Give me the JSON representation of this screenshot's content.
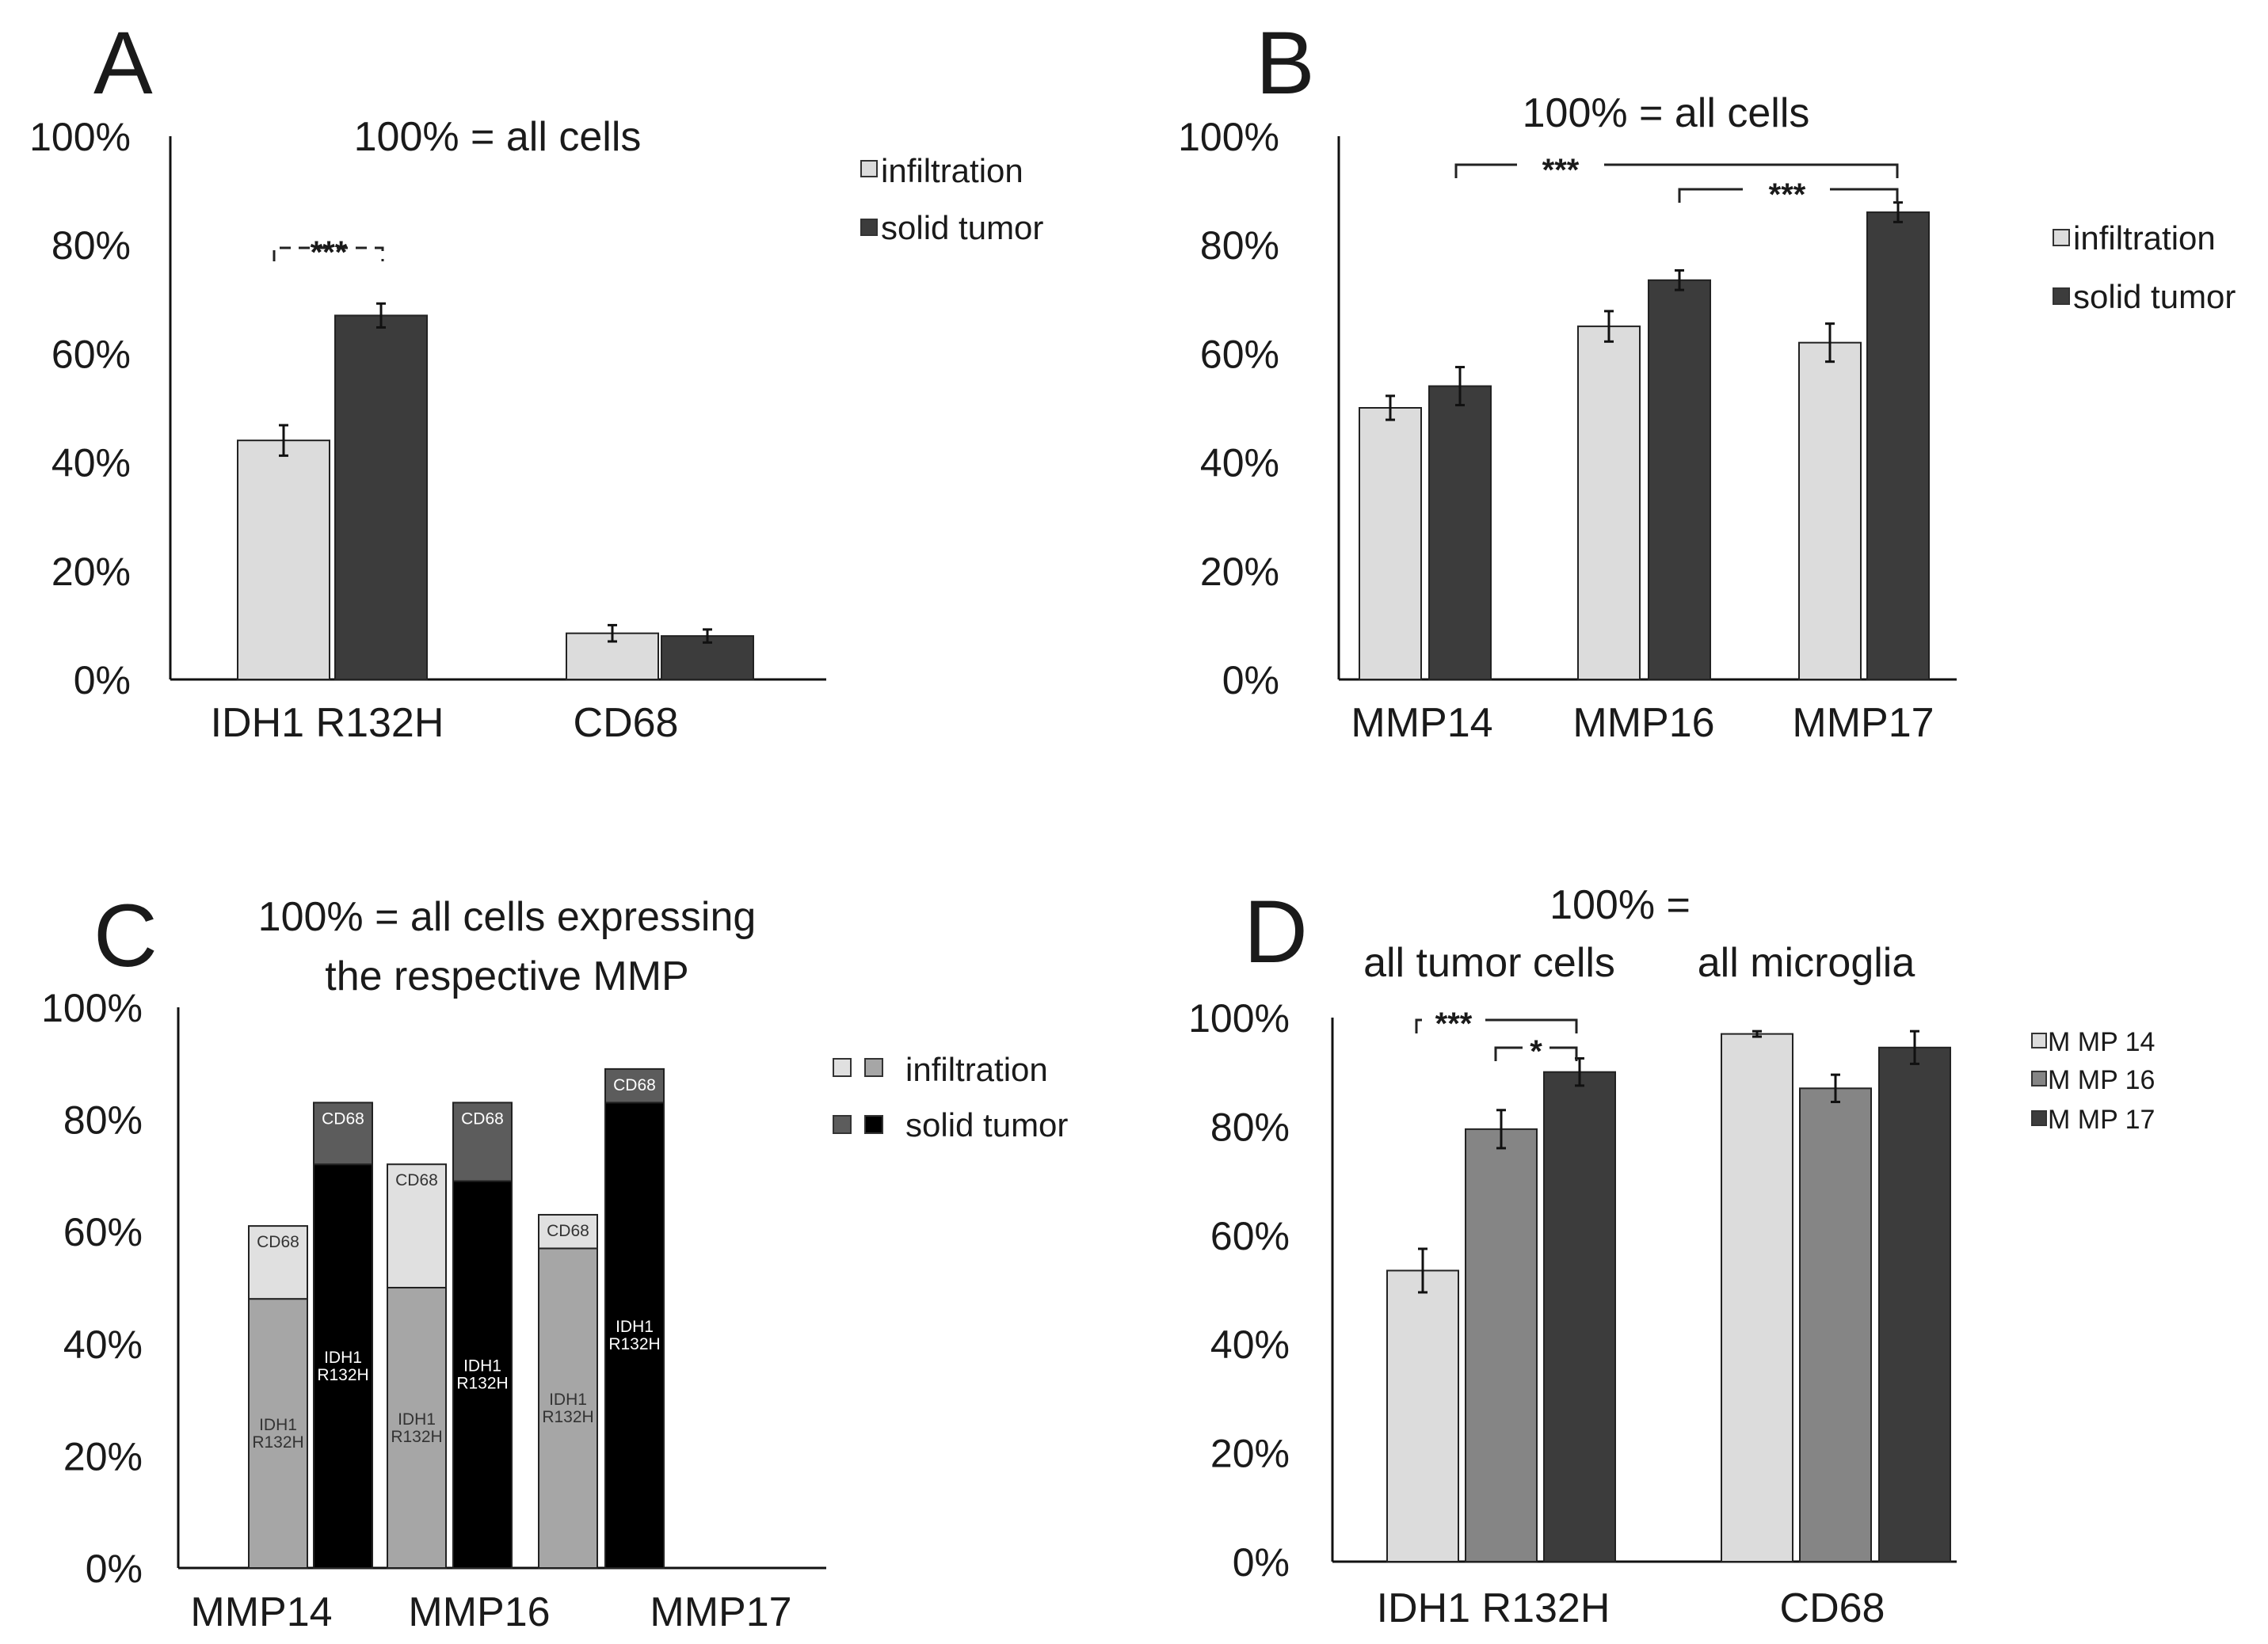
{
  "chart_data": [
    {
      "panel": "A",
      "type": "bar",
      "title": "100% = all cells",
      "categories": [
        "IDH1 R132H",
        "CD68"
      ],
      "series": [
        {
          "name": "infiltration",
          "values": [
            44,
            8.5
          ],
          "errors": [
            2.8,
            1.5
          ],
          "color": "#dcdcdc"
        },
        {
          "name": "solid tumor",
          "values": [
            67,
            8
          ],
          "errors": [
            2.2,
            1.2
          ],
          "color": "#3c3c3c"
        }
      ],
      "yticks": [
        "0%",
        "20%",
        "40%",
        "60%",
        "80%",
        "100%"
      ],
      "ylim": [
        0,
        100
      ],
      "legend_position": "top-right",
      "significance": [
        {
          "label": "***",
          "from": "IDH1 R132H infiltration",
          "to": "IDH1 R132H solid tumor"
        }
      ]
    },
    {
      "panel": "B",
      "type": "bar",
      "title": "100% = all cells",
      "categories": [
        "MMP14",
        "MMP16",
        "MMP17"
      ],
      "series": [
        {
          "name": "infiltration",
          "values": [
            50,
            65,
            62
          ],
          "errors": [
            2.2,
            2.8,
            3.5
          ],
          "color": "#dcdcdc"
        },
        {
          "name": "solid tumor",
          "values": [
            54,
            73.5,
            86
          ],
          "errors": [
            3.5,
            1.8,
            1.8
          ],
          "color": "#3c3c3c"
        }
      ],
      "yticks": [
        "0%",
        "20%",
        "40%",
        "60%",
        "80%",
        "100%"
      ],
      "ylim": [
        0,
        100
      ],
      "legend_position": "right",
      "significance": [
        {
          "label": "***",
          "from": "MMP14",
          "to": "MMP17"
        },
        {
          "label": "***",
          "from": "MMP16",
          "to": "MMP17"
        }
      ]
    },
    {
      "panel": "C",
      "type": "bar",
      "stacked": true,
      "title": "100% = all cells expressing the respective MMP",
      "title_lines": [
        "100% = all cells expressing",
        "the respective MMP"
      ],
      "categories": [
        "MMP14",
        "MMP16",
        "MMP17"
      ],
      "segment_labels": {
        "IDH1 R132H": [
          "IDH1",
          "R132H"
        ],
        "CD68": "CD68"
      },
      "stacks": [
        {
          "group": "infiltration",
          "segments": [
            {
              "name": "IDH1 R132H",
              "values": [
                48,
                50,
                57
              ],
              "color": "#a6a6a6"
            },
            {
              "name": "CD68",
              "values": [
                13,
                22,
                6
              ],
              "color": "#e0e0e0"
            }
          ]
        },
        {
          "group": "solid tumor",
          "segments": [
            {
              "name": "IDH1 R132H",
              "values": [
                72,
                69,
                83
              ],
              "color": "#000000"
            },
            {
              "name": "CD68",
              "values": [
                11,
                14,
                6
              ],
              "color": "#5c5c5c"
            }
          ]
        }
      ],
      "legend": [
        {
          "label": "infiltration",
          "colors": [
            "#e0e0e0",
            "#a6a6a6"
          ]
        },
        {
          "label": "solid tumor",
          "colors": [
            "#5c5c5c",
            "#000000"
          ]
        }
      ],
      "yticks": [
        "0%",
        "20%",
        "40%",
        "60%",
        "80%",
        "100%"
      ],
      "ylim": [
        0,
        100
      ],
      "legend_position": "top-right"
    },
    {
      "panel": "D",
      "type": "bar",
      "title": "100% = ",
      "subtitles": [
        "all tumor cells",
        "all microglia"
      ],
      "categories": [
        "IDH1 R132H",
        "CD68"
      ],
      "series": [
        {
          "name": "M MP 14",
          "values": [
            53.5,
            97
          ],
          "errors": [
            4,
            0.5
          ],
          "color": "#dcdcdc"
        },
        {
          "name": "M MP 16",
          "values": [
            79.5,
            87
          ],
          "errors": [
            3.5,
            2.5
          ],
          "color": "#858585"
        },
        {
          "name": "M MP 17",
          "values": [
            90,
            94.5
          ],
          "errors": [
            2.5,
            3
          ],
          "color": "#3c3c3c"
        }
      ],
      "yticks": [
        "0%",
        "20%",
        "40%",
        "60%",
        "80%",
        "100%"
      ],
      "ylim": [
        0,
        100
      ],
      "legend_position": "top-right",
      "significance": [
        {
          "label": "***",
          "from": "M MP 14",
          "to": "M MP 17"
        },
        {
          "label": "*",
          "from": "M MP 16",
          "to": "M MP 17"
        }
      ]
    }
  ]
}
